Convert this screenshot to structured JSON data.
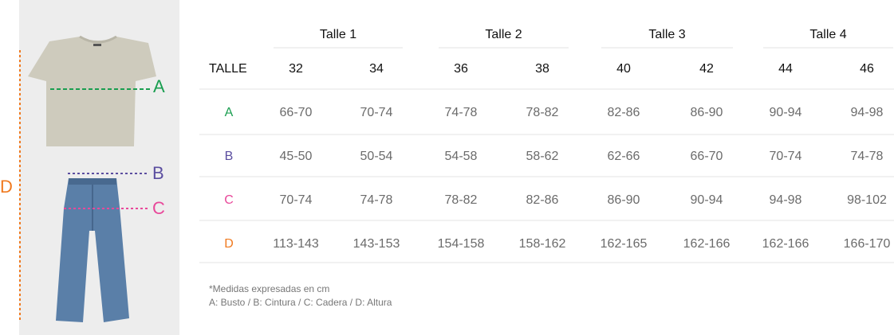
{
  "table": {
    "groups": [
      "Talle 1",
      "Talle 2",
      "Talle 3",
      "Talle 4"
    ],
    "header": {
      "label": "TALLE",
      "sizes": [
        "32",
        "34",
        "36",
        "38",
        "40",
        "42",
        "44",
        "46"
      ]
    },
    "rows": [
      {
        "label": "A",
        "cells": [
          "66-70",
          "70-74",
          "74-78",
          "78-82",
          "82-86",
          "86-90",
          "90-94",
          "94-98"
        ]
      },
      {
        "label": "B",
        "cells": [
          "45-50",
          "50-54",
          "54-58",
          "58-62",
          "62-66",
          "66-70",
          "70-74",
          "74-78"
        ]
      },
      {
        "label": "C",
        "cells": [
          "70-74",
          "74-78",
          "78-82",
          "82-86",
          "86-90",
          "90-94",
          "94-98",
          "98-102"
        ]
      },
      {
        "label": "D",
        "cells": [
          "113-143",
          "143-153",
          "154-158",
          "158-162",
          "162-165",
          "162-166",
          "162-166",
          "166-170"
        ]
      }
    ]
  },
  "footnote": [
    "*Medidas expresadas en cm",
    "A: Busto / B: Cintura / C: Cadera / D: Altura"
  ]
}
